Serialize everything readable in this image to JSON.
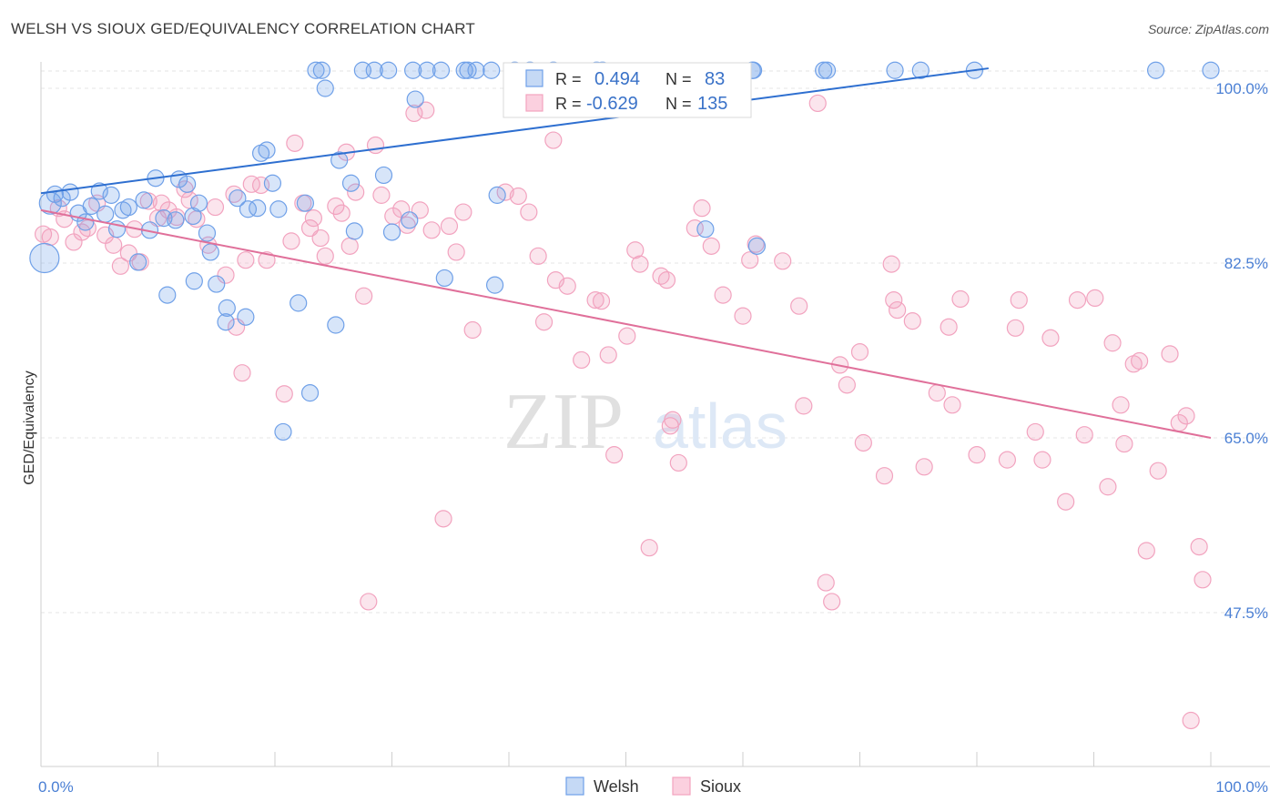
{
  "header": {
    "title": "WELSH VS SIOUX GED/EQUIVALENCY CORRELATION CHART",
    "source": "Source: ZipAtlas.com"
  },
  "watermark": {
    "zip": "ZIP",
    "atlas": "atlas"
  },
  "legend_box": {
    "welsh": {
      "r_label": "R =",
      "r_value": "0.494",
      "n_label": "N =",
      "n_value": "83"
    },
    "sioux": {
      "r_label": "R =",
      "r_value": "-0.629",
      "n_label": "N =",
      "n_value": "135"
    }
  },
  "chart_data": {
    "type": "scatter",
    "title": "WELSH VS SIOUX GED/EQUIVALENCY CORRELATION CHART",
    "ylabel": "GED/Equivalency",
    "xlabel": "",
    "xlim": [
      0,
      100
    ],
    "ylim": [
      30,
      102
    ],
    "x_tick_labels": [
      "0.0%",
      "100.0%"
    ],
    "y_ticks": [
      100.0,
      82.5,
      65.0,
      47.5
    ],
    "y_tick_labels": [
      "100.0%",
      "82.5%",
      "65.0%",
      "47.5%"
    ],
    "grid": true,
    "legend_position": "bottom-center",
    "colors": {
      "welsh": "#6fa0e8",
      "welsh_line": "#2e6fd0",
      "sioux": "#f2a3bf",
      "sioux_line": "#e0709a"
    },
    "series": [
      {
        "name": "Welsh",
        "r": 0.494,
        "n": 83,
        "trend": {
          "x": [
            0,
            81
          ],
          "y": [
            89.5,
            102
          ]
        },
        "points": [
          [
            0.3,
            83.0
          ],
          [
            0.8,
            88.5
          ],
          [
            1.2,
            89.4
          ],
          [
            1.8,
            89.0
          ],
          [
            2.5,
            89.6
          ],
          [
            3.2,
            87.5
          ],
          [
            3.8,
            86.6
          ],
          [
            4.3,
            88.2
          ],
          [
            5.0,
            89.7
          ],
          [
            5.5,
            87.4
          ],
          [
            6.0,
            89.3
          ],
          [
            6.5,
            85.9
          ],
          [
            7.0,
            87.8
          ],
          [
            7.5,
            88.1
          ],
          [
            8.3,
            82.6
          ],
          [
            8.8,
            88.8
          ],
          [
            9.3,
            85.8
          ],
          [
            9.8,
            91.0
          ],
          [
            10.5,
            87.0
          ],
          [
            10.8,
            79.3
          ],
          [
            11.5,
            86.8
          ],
          [
            11.8,
            90.9
          ],
          [
            12.5,
            90.4
          ],
          [
            13.0,
            87.2
          ],
          [
            13.1,
            80.7
          ],
          [
            13.5,
            88.5
          ],
          [
            14.2,
            85.5
          ],
          [
            14.5,
            83.6
          ],
          [
            15.0,
            80.4
          ],
          [
            15.8,
            76.6
          ],
          [
            15.9,
            78.0
          ],
          [
            16.8,
            89.0
          ],
          [
            17.5,
            77.1
          ],
          [
            17.7,
            87.9
          ],
          [
            18.5,
            88.0
          ],
          [
            18.8,
            93.5
          ],
          [
            19.3,
            93.8
          ],
          [
            19.8,
            90.5
          ],
          [
            20.3,
            87.9
          ],
          [
            20.7,
            65.6
          ],
          [
            22.0,
            78.5
          ],
          [
            22.6,
            88.5
          ],
          [
            23.0,
            69.5
          ],
          [
            23.5,
            101.8
          ],
          [
            24.0,
            101.8
          ],
          [
            24.3,
            100.0
          ],
          [
            25.2,
            76.3
          ],
          [
            25.5,
            92.8
          ],
          [
            26.5,
            90.5
          ],
          [
            26.8,
            85.7
          ],
          [
            27.5,
            101.8
          ],
          [
            28.5,
            101.8
          ],
          [
            29.3,
            91.3
          ],
          [
            29.7,
            101.8
          ],
          [
            30.0,
            85.6
          ],
          [
            31.5,
            86.8
          ],
          [
            31.8,
            101.8
          ],
          [
            32.0,
            98.9
          ],
          [
            33.0,
            101.8
          ],
          [
            34.2,
            101.8
          ],
          [
            34.5,
            81.0
          ],
          [
            36.2,
            101.8
          ],
          [
            36.5,
            101.8
          ],
          [
            37.2,
            101.8
          ],
          [
            38.5,
            101.8
          ],
          [
            38.8,
            80.3
          ],
          [
            39.0,
            89.3
          ],
          [
            40.5,
            101.8
          ],
          [
            41.8,
            101.8
          ],
          [
            43.8,
            101.8
          ],
          [
            47.5,
            101.8
          ],
          [
            48.0,
            101.8
          ],
          [
            56.8,
            85.9
          ],
          [
            60.8,
            101.8
          ],
          [
            60.9,
            101.8
          ],
          [
            61.2,
            84.2
          ],
          [
            66.9,
            101.8
          ],
          [
            67.2,
            101.8
          ],
          [
            73.0,
            101.8
          ],
          [
            75.2,
            101.8
          ],
          [
            79.8,
            101.8
          ],
          [
            95.3,
            101.8
          ],
          [
            100.0,
            101.8
          ]
        ]
      },
      {
        "name": "Sioux",
        "r": -0.629,
        "n": 135,
        "trend": {
          "x": [
            0,
            100
          ],
          "y": [
            87.8,
            65.0
          ]
        },
        "points": [
          [
            0.2,
            85.4
          ],
          [
            0.8,
            85.1
          ],
          [
            1.5,
            88.0
          ],
          [
            2.0,
            86.9
          ],
          [
            2.8,
            84.6
          ],
          [
            3.5,
            85.6
          ],
          [
            4.0,
            86.0
          ],
          [
            4.8,
            88.5
          ],
          [
            5.5,
            85.3
          ],
          [
            6.2,
            84.3
          ],
          [
            6.8,
            82.2
          ],
          [
            7.5,
            83.5
          ],
          [
            8.0,
            85.9
          ],
          [
            8.5,
            82.6
          ],
          [
            9.2,
            88.7
          ],
          [
            10.0,
            87.0
          ],
          [
            10.3,
            88.5
          ],
          [
            10.9,
            87.8
          ],
          [
            11.6,
            87.1
          ],
          [
            12.3,
            89.9
          ],
          [
            12.7,
            88.8
          ],
          [
            13.3,
            86.9
          ],
          [
            14.3,
            84.3
          ],
          [
            14.9,
            88.1
          ],
          [
            15.8,
            81.3
          ],
          [
            16.5,
            89.4
          ],
          [
            16.7,
            76.1
          ],
          [
            17.2,
            71.5
          ],
          [
            17.5,
            82.8
          ],
          [
            18.0,
            90.4
          ],
          [
            18.8,
            90.3
          ],
          [
            19.3,
            82.8
          ],
          [
            20.8,
            69.4
          ],
          [
            21.4,
            84.7
          ],
          [
            21.7,
            94.5
          ],
          [
            22.4,
            88.5
          ],
          [
            23.0,
            86.0
          ],
          [
            23.3,
            87.0
          ],
          [
            23.9,
            85.0
          ],
          [
            24.3,
            83.2
          ],
          [
            25.2,
            88.2
          ],
          [
            25.7,
            87.5
          ],
          [
            26.1,
            93.6
          ],
          [
            26.4,
            84.2
          ],
          [
            26.9,
            89.6
          ],
          [
            27.6,
            79.2
          ],
          [
            28.0,
            48.6
          ],
          [
            28.6,
            94.3
          ],
          [
            29.1,
            89.3
          ],
          [
            30.1,
            87.2
          ],
          [
            30.8,
            87.9
          ],
          [
            31.3,
            86.3
          ],
          [
            31.9,
            97.5
          ],
          [
            32.4,
            87.8
          ],
          [
            32.9,
            97.8
          ],
          [
            33.4,
            85.8
          ],
          [
            34.4,
            56.9
          ],
          [
            34.9,
            86.2
          ],
          [
            35.5,
            83.6
          ],
          [
            36.1,
            87.6
          ],
          [
            36.9,
            75.8
          ],
          [
            39.7,
            89.6
          ],
          [
            40.8,
            89.2
          ],
          [
            41.7,
            87.6
          ],
          [
            42.5,
            83.2
          ],
          [
            43.0,
            76.6
          ],
          [
            43.8,
            94.8
          ],
          [
            44.0,
            80.8
          ],
          [
            45.0,
            80.2
          ],
          [
            46.2,
            72.8
          ],
          [
            47.4,
            78.8
          ],
          [
            47.9,
            78.7
          ],
          [
            48.5,
            73.3
          ],
          [
            49.0,
            63.3
          ],
          [
            50.1,
            75.2
          ],
          [
            50.8,
            83.8
          ],
          [
            51.2,
            82.4
          ],
          [
            52.0,
            54.0
          ],
          [
            53.0,
            81.2
          ],
          [
            53.5,
            80.8
          ],
          [
            53.8,
            66.2
          ],
          [
            54.0,
            66.8
          ],
          [
            54.5,
            62.5
          ],
          [
            55.9,
            86.0
          ],
          [
            56.5,
            88.0
          ],
          [
            57.3,
            84.2
          ],
          [
            58.3,
            79.3
          ],
          [
            60.0,
            77.2
          ],
          [
            60.6,
            82.8
          ],
          [
            61.1,
            84.4
          ],
          [
            63.4,
            82.7
          ],
          [
            64.8,
            78.2
          ],
          [
            65.2,
            68.2
          ],
          [
            66.4,
            98.5
          ],
          [
            67.1,
            50.5
          ],
          [
            67.6,
            48.6
          ],
          [
            68.3,
            72.3
          ],
          [
            68.9,
            70.3
          ],
          [
            70.0,
            73.6
          ],
          [
            70.3,
            64.5
          ],
          [
            72.1,
            61.2
          ],
          [
            72.7,
            82.4
          ],
          [
            72.9,
            78.8
          ],
          [
            73.2,
            77.8
          ],
          [
            74.5,
            76.7
          ],
          [
            75.5,
            62.1
          ],
          [
            76.6,
            69.5
          ],
          [
            77.6,
            76.1
          ],
          [
            77.9,
            68.3
          ],
          [
            78.6,
            78.9
          ],
          [
            80.0,
            63.3
          ],
          [
            82.6,
            62.8
          ],
          [
            83.3,
            76.0
          ],
          [
            83.6,
            78.8
          ],
          [
            85.0,
            65.6
          ],
          [
            85.6,
            62.8
          ],
          [
            86.3,
            75.0
          ],
          [
            87.6,
            58.6
          ],
          [
            88.6,
            78.8
          ],
          [
            89.2,
            65.3
          ],
          [
            90.1,
            79.0
          ],
          [
            91.2,
            60.1
          ],
          [
            91.6,
            74.5
          ],
          [
            92.3,
            68.3
          ],
          [
            92.6,
            64.4
          ],
          [
            93.4,
            72.4
          ],
          [
            93.9,
            72.7
          ],
          [
            94.5,
            53.7
          ],
          [
            95.5,
            61.7
          ],
          [
            96.5,
            73.4
          ],
          [
            97.3,
            66.5
          ],
          [
            97.9,
            67.2
          ],
          [
            98.3,
            36.7
          ],
          [
            99.0,
            54.1
          ],
          [
            99.3,
            50.8
          ]
        ]
      }
    ]
  }
}
